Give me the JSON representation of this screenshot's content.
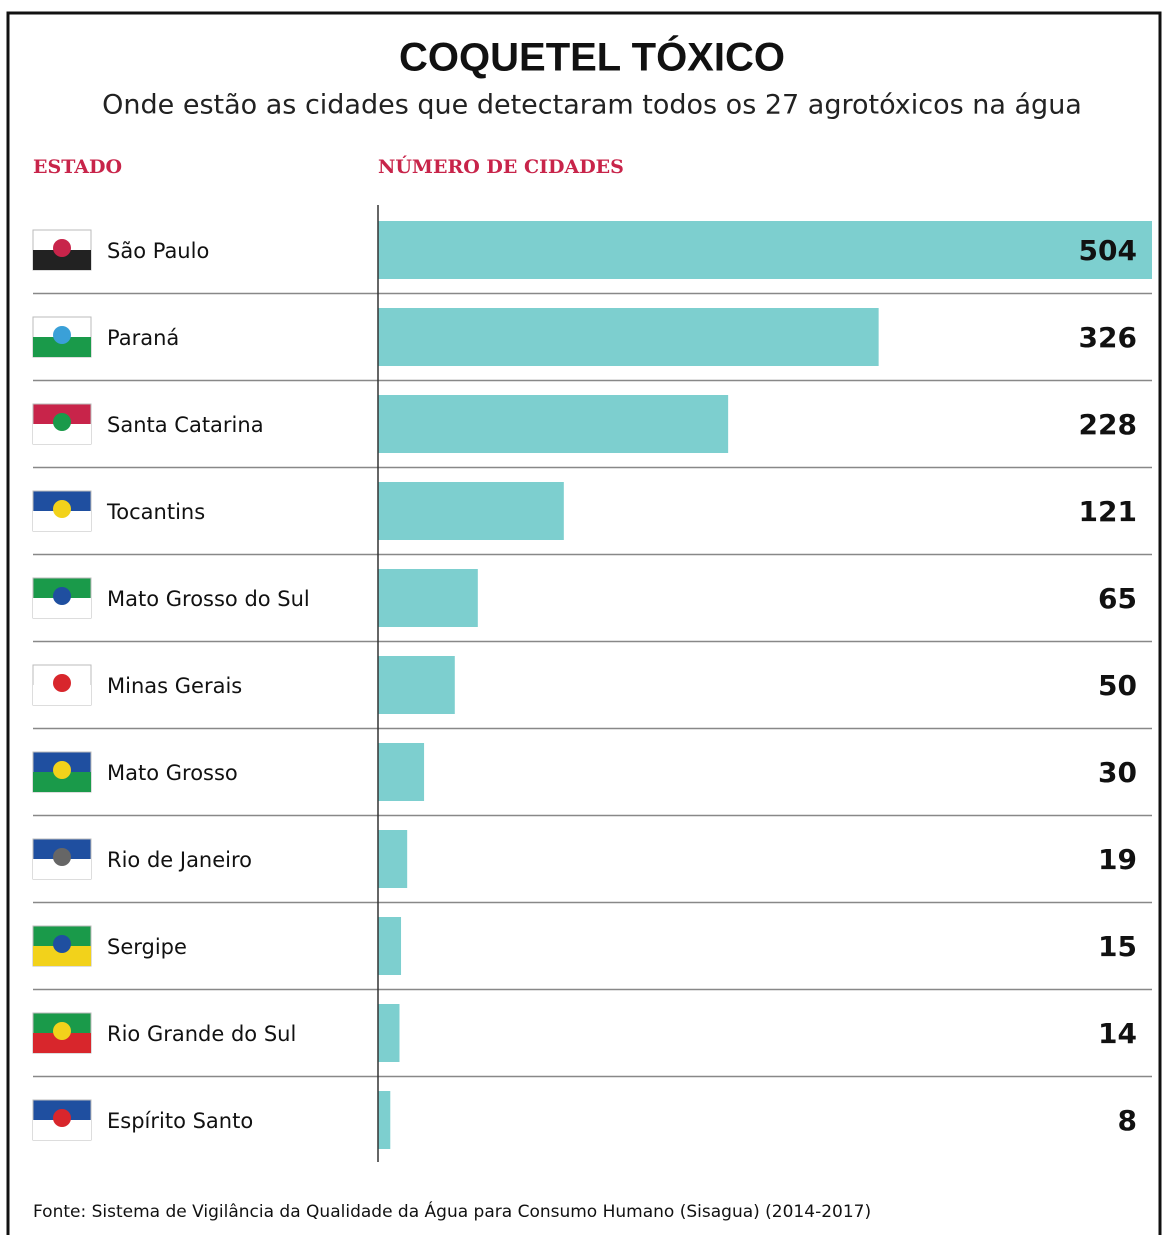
{
  "chart_data": {
    "type": "bar",
    "orientation": "horizontal",
    "title": "COQUETEL TÓXICO",
    "subtitle": "Onde estão as cidades que detectaram todos os 27 agrotóxicos na água",
    "column_headers": [
      "ESTADO",
      "NÚMERO DE CIDADES"
    ],
    "categories": [
      "São Paulo",
      "Paraná",
      "Santa Catarina",
      "Tocantins",
      "Mato Grosso do Sul",
      "Minas Gerais",
      "Mato Grosso",
      "Rio de Janeiro",
      "Sergipe",
      "Rio Grande do Sul",
      "Espírito Santo"
    ],
    "values": [
      504,
      326,
      228,
      121,
      65,
      50,
      30,
      19,
      15,
      14,
      8
    ],
    "color": "#7dcfcf",
    "xlim": [
      0,
      504
    ],
    "source": "Fonte: Sistema de Vigilância da Qualidade da Água para Consumo Humano (Sisagua) (2014-2017)"
  }
}
